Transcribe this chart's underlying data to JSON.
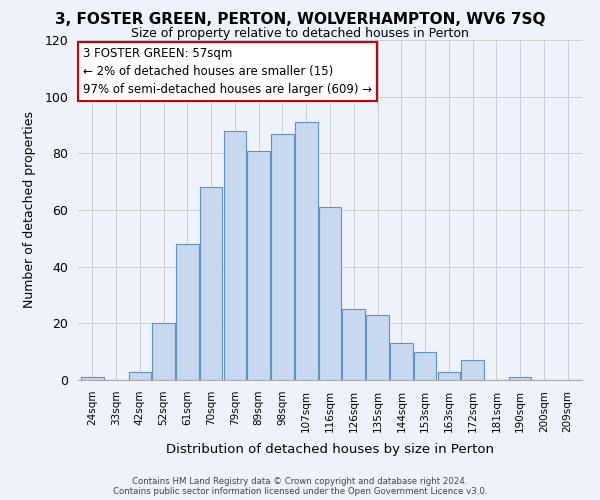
{
  "title": "3, FOSTER GREEN, PERTON, WOLVERHAMPTON, WV6 7SQ",
  "subtitle": "Size of property relative to detached houses in Perton",
  "xlabel": "Distribution of detached houses by size in Perton",
  "ylabel": "Number of detached properties",
  "footnote1": "Contains HM Land Registry data © Crown copyright and database right 2024.",
  "footnote2": "Contains public sector information licensed under the Open Government Licence v3.0.",
  "bar_labels": [
    "24sqm",
    "33sqm",
    "42sqm",
    "52sqm",
    "61sqm",
    "70sqm",
    "79sqm",
    "89sqm",
    "98sqm",
    "107sqm",
    "116sqm",
    "126sqm",
    "135sqm",
    "144sqm",
    "153sqm",
    "163sqm",
    "172sqm",
    "181sqm",
    "190sqm",
    "200sqm",
    "209sqm"
  ],
  "bar_values": [
    1,
    0,
    3,
    20,
    48,
    68,
    88,
    81,
    87,
    91,
    61,
    25,
    23,
    13,
    10,
    3,
    7,
    0,
    1,
    0,
    0
  ],
  "bar_color": "#c8d9ef",
  "bar_edge_color": "#6090c8",
  "ylim": [
    0,
    120
  ],
  "yticks": [
    0,
    20,
    40,
    60,
    80,
    100,
    120
  ],
  "annotation_title": "3 FOSTER GREEN: 57sqm",
  "annotation_line1": "← 2% of detached houses are smaller (15)",
  "annotation_line2": "97% of semi-detached houses are larger (609) →",
  "annotation_box_color": "#ffffff",
  "annotation_box_edge": "#cc0000",
  "grid_color": "#cccccc",
  "bg_color": "#eef2fa"
}
